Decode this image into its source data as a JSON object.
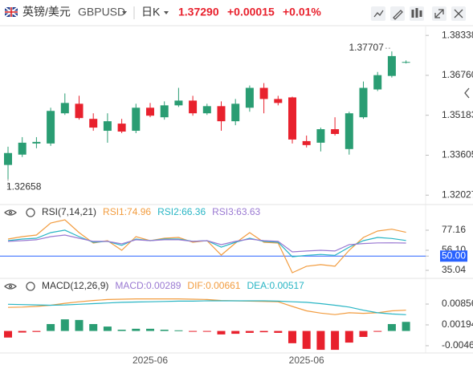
{
  "header": {
    "pair": "英镑/美元",
    "symbol": "GBPUSD",
    "period": "日K",
    "price": "1.37290",
    "change": "+0.00015",
    "change_pct": "+0.01%"
  },
  "chart_data": [
    {
      "type": "candlestick",
      "categories": [
        null,
        null,
        null,
        null,
        null,
        null,
        null,
        null,
        null,
        null,
        "2025-06",
        null,
        null,
        null,
        null,
        null,
        null,
        null,
        null,
        null,
        null,
        "2025-06",
        null,
        null,
        null,
        null,
        null,
        null,
        null
      ],
      "open": [
        1.3322,
        1.33628,
        1.34068,
        1.34068,
        1.35261,
        1.35638,
        1.35041,
        1.3457,
        1.34853,
        1.3457,
        1.35481,
        1.35104,
        1.35575,
        1.35763,
        1.35261,
        1.35543,
        1.34947,
        1.35481,
        1.36266,
        1.35826,
        1.35889,
        1.34162,
        1.34099,
        1.34633,
        1.33848,
        1.35104,
        1.36203,
        1.36737,
        1.37275
      ],
      "high": [
        1.33942,
        1.34319,
        1.34319,
        1.35481,
        1.36046,
        1.35952,
        1.35261,
        1.35261,
        1.35041,
        1.35638,
        1.35669,
        1.35732,
        1.36266,
        1.35952,
        1.35638,
        1.35732,
        1.35826,
        1.3636,
        1.36454,
        1.35952,
        1.3592,
        1.34382,
        1.34696,
        1.35104,
        1.35324,
        1.36517,
        1.36894,
        1.37707,
        1.3735
      ],
      "low": [
        1.32658,
        1.33534,
        1.33879,
        1.33974,
        1.35198,
        1.3501,
        1.3457,
        1.34099,
        1.34476,
        1.34476,
        1.35104,
        1.3501,
        1.35512,
        1.35167,
        1.35198,
        1.3457,
        1.3479,
        1.35324,
        1.35261,
        1.35575,
        1.34068,
        1.33911,
        1.33754,
        1.34382,
        1.33628,
        1.35041,
        1.3614,
        1.36674,
        1.3723
      ],
      "close": [
        1.33691,
        1.34099,
        1.3413,
        1.35355,
        1.35669,
        1.35072,
        1.34696,
        1.34947,
        1.34539,
        1.35481,
        1.35167,
        1.35575,
        1.35763,
        1.35261,
        1.35543,
        1.34947,
        1.35638,
        1.36266,
        1.35826,
        1.35669,
        1.34225,
        1.34005,
        1.34633,
        1.34444,
        1.35261,
        1.36266,
        1.36768,
        1.37522,
        1.3729
      ],
      "up_color": "#2a9d73",
      "down_color": "#e8212d",
      "ylim": [
        1.3175,
        1.3866
      ],
      "yticks": [
        1.38338,
        {
          "value": 1.3676,
          "label": "1.36760"
        },
        1.35183,
        1.33605,
        1.32027
      ]
    },
    {
      "type": "line",
      "title": "RSI(7,14,21)",
      "series": [
        {
          "name": "RSI1:74.96",
          "color": "#f29c3f",
          "values": [
            67.9,
            70.4,
            72.1,
            84.7,
            88.1,
            74.6,
            63.7,
            66.2,
            56.1,
            70.4,
            66.2,
            68.7,
            69.6,
            64.5,
            66.2,
            51.0,
            63.7,
            74.6,
            64.5,
            63.7,
            32.5,
            39.3,
            41.0,
            39.3,
            56.1,
            69.6,
            76.3,
            78.2,
            74.96
          ]
        },
        {
          "name": "RSI2:66.36",
          "color": "#28b5c4",
          "values": [
            66.2,
            67.9,
            68.7,
            74.6,
            77.2,
            70.4,
            64.5,
            65.4,
            61.2,
            67.9,
            66.2,
            67.9,
            67.9,
            65.4,
            66.2,
            59.4,
            64.5,
            68.7,
            65.4,
            64.5,
            49.3,
            50.8,
            51.7,
            50.8,
            59.4,
            66.2,
            69.6,
            68.5,
            66.36
          ]
        },
        {
          "name": "RSI3:63.63",
          "color": "#9a79d2",
          "values": [
            65.4,
            66.2,
            67.1,
            70.4,
            72.1,
            68.7,
            65.4,
            65.4,
            62.8,
            67.1,
            66.2,
            67.1,
            67.1,
            65.4,
            66.2,
            62.0,
            65.4,
            67.9,
            66.2,
            65.4,
            54.4,
            55.3,
            56.1,
            55.3,
            62.0,
            63.2,
            63.8,
            63.9,
            63.63
          ]
        }
      ],
      "ylim": [
        28.3,
        98.2
      ],
      "yticks": [
        77.16,
        {
          "value": 56.1,
          "label": "56.10"
        },
        {
          "value": 50,
          "label": "50.00"
        },
        35.04
      ],
      "reference_line": {
        "value": 50,
        "color": "#2962ff"
      }
    },
    {
      "type": "combo",
      "title": "MACD(12,26,9)",
      "series": [
        {
          "name": "MACD:0.00289",
          "kind": "bar",
          "color": "#9a79d2",
          "up_color": "#2a9d73",
          "down_color": "#e8212d",
          "values": [
            -0.0021,
            -0.0005,
            -0.0003,
            0.0022,
            0.0037,
            0.0035,
            0.0022,
            0.0014,
            0.0004,
            0.0007,
            0.0007,
            0.0004,
            0.0002,
            -0.0001,
            -0.0002,
            -0.0011,
            -0.0009,
            -0.0006,
            -0.0004,
            -0.0006,
            -0.0039,
            -0.0057,
            -0.006,
            -0.006,
            -0.0037,
            -0.0019,
            -0.0001,
            0.0022,
            0.00289
          ]
        },
        {
          "name": "DIF:0.00661",
          "kind": "line",
          "color": "#f29c3f",
          "values": [
            0.0075,
            0.0076,
            0.0078,
            0.0082,
            0.0088,
            0.0093,
            0.0097,
            0.01,
            0.0101,
            0.0102,
            0.0102,
            0.0102,
            0.0102,
            0.0101,
            0.01,
            0.0097,
            0.0096,
            0.0095,
            0.0094,
            0.0093,
            0.0078,
            0.0064,
            0.0057,
            0.0052,
            0.0058,
            0.0056,
            0.0058,
            0.0064,
            0.00661
          ]
        },
        {
          "name": "DEA:0.00517",
          "kind": "line",
          "color": "#28b5c4",
          "values": [
            0.0085,
            0.0084,
            0.0083,
            0.0082,
            0.0083,
            0.0085,
            0.0087,
            0.0089,
            0.0091,
            0.0092,
            0.0093,
            0.0094,
            0.0095,
            0.0095,
            0.0096,
            0.0096,
            0.0096,
            0.0096,
            0.0096,
            0.0095,
            0.0093,
            0.0091,
            0.0087,
            0.0082,
            0.0076,
            0.0066,
            0.0058,
            0.0054,
            0.00517
          ]
        }
      ],
      "ylim": [
        -0.007,
        0.0147
      ],
      "yticks": [
        0.00856,
        0.00194,
        -0.00469
      ]
    }
  ]
}
